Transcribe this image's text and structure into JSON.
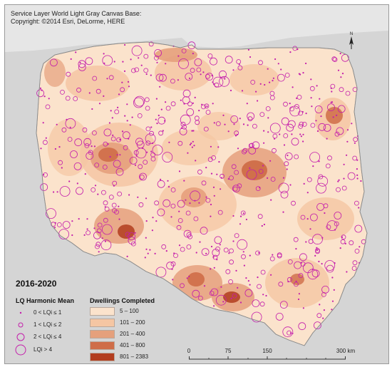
{
  "basemap": {
    "credit_line1": "Service Layer World Light Gray Canvas Base:",
    "credit_line2": "Copyright: ©2014 Esri, DeLorme, HERE"
  },
  "north_arrow": {
    "label": "N"
  },
  "legend": {
    "period": "2016-2020",
    "lq_title": "LQ Harmonic Mean",
    "dwellings_title": "Dwellings Completed",
    "lq_classes": [
      {
        "label": "0 < LQi ≤ 1"
      },
      {
        "label": "1 < LQi ≤ 2"
      },
      {
        "label": "2 < LQi ≤ 4"
      },
      {
        "label": "LQi > 4"
      }
    ],
    "dwelling_classes": [
      {
        "label": "5 – 100",
        "color": "#fbe3cc"
      },
      {
        "label": "101 – 200",
        "color": "#f5c6a3"
      },
      {
        "label": "201 – 400",
        "color": "#e5a07c"
      },
      {
        "label": "401 – 800",
        "color": "#cf6d48"
      },
      {
        "label": "801 – 2383",
        "color": "#b23d1f"
      }
    ],
    "symbol_color": "#c41eab"
  },
  "scale_bar": {
    "ticks": [
      "0",
      "75",
      "150",
      "300 km"
    ]
  },
  "colors": {
    "land_outside": "#d4d4d4",
    "sea": "#e3e3e3",
    "country_fill": "#fbe3cc"
  }
}
